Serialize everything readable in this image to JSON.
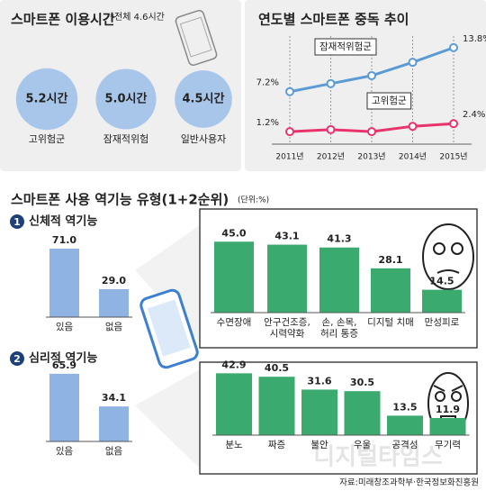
{
  "chart_data": [
    {
      "type": "circle",
      "title": "스마트폰 이용시간",
      "note": "*전체 4.6시간",
      "categories": [
        "고위험군",
        "잠재적위험",
        "일반사용자"
      ],
      "values": [
        5.2,
        5.0,
        4.5
      ],
      "value_labels": [
        "5.2시간",
        "5.0시간",
        "4.5시간"
      ],
      "color": "#a8c6ea"
    },
    {
      "type": "line",
      "title": "연도별 스마트폰 중독 추이",
      "categories": [
        "2011년",
        "2012년",
        "2013년",
        "2014년",
        "2015년"
      ],
      "series": [
        {
          "name": "잠재적위험군",
          "color": "#5b9bd5",
          "values": [
            7.2,
            8.4,
            9.6,
            11.6,
            13.8
          ],
          "value_labels": [
            "7.2%",
            null,
            null,
            null,
            "13.8%"
          ]
        },
        {
          "name": "고위험군",
          "color": "#e8336d",
          "values": [
            1.2,
            1.5,
            1.2,
            2.0,
            2.4
          ],
          "value_labels": [
            "1.2%",
            null,
            null,
            null,
            "2.4%"
          ]
        }
      ]
    },
    {
      "type": "bar",
      "categories": [
        "있음",
        "없음"
      ],
      "values": [
        71.0,
        29.0
      ],
      "value_labels": [
        "71.0",
        "29.0"
      ],
      "color": "#8fb4e3"
    },
    {
      "type": "bar",
      "categories": [
        "수면장애",
        "안구건조증,\n시력약화",
        "손, 손목,\n허리 통증",
        "디지털 치매",
        "만성피로"
      ],
      "values": [
        45.0,
        43.1,
        41.3,
        28.1,
        14.5
      ],
      "value_labels": [
        "45.0",
        "43.1",
        "41.3",
        "28.1",
        "14.5"
      ],
      "color": "#3aaa6e"
    },
    {
      "type": "bar",
      "categories": [
        "있음",
        "없음"
      ],
      "values": [
        65.9,
        34.1
      ],
      "value_labels": [
        "65.9",
        "34.1"
      ],
      "color": "#8fb4e3"
    },
    {
      "type": "bar",
      "categories": [
        "분노",
        "짜증",
        "불안",
        "우울",
        "공격성",
        "무기력"
      ],
      "values": [
        42.9,
        40.5,
        31.6,
        30.5,
        13.5,
        11.9
      ],
      "value_labels": [
        "42.9",
        "40.5",
        "31.6",
        "30.5",
        "13.5",
        "11.9"
      ],
      "color": "#3aaa6e"
    }
  ],
  "infographic": {
    "title": "스마트폰 사용 역기능 유형(1+2순위)",
    "unit": "(단위:%)",
    "sections": [
      {
        "number": 1,
        "title": "신체적 역기능"
      },
      {
        "number": 2,
        "title": "심리적 역기능"
      }
    ],
    "source": "자료:미래창조과학부·한국정보화진흥원",
    "watermark": "디지털타임스"
  }
}
